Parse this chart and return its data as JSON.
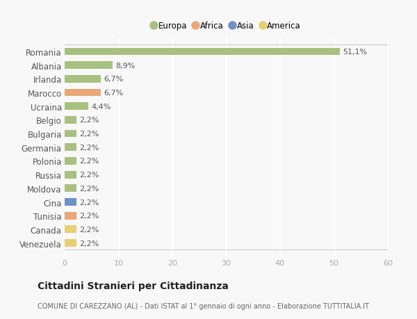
{
  "countries": [
    "Romania",
    "Albania",
    "Irlanda",
    "Marocco",
    "Ucraina",
    "Belgio",
    "Bulgaria",
    "Germania",
    "Polonia",
    "Russia",
    "Moldova",
    "Cina",
    "Tunisia",
    "Canada",
    "Venezuela"
  ],
  "values": [
    51.1,
    8.9,
    6.7,
    6.7,
    4.4,
    2.2,
    2.2,
    2.2,
    2.2,
    2.2,
    2.2,
    2.2,
    2.2,
    2.2,
    2.2
  ],
  "labels": [
    "51,1%",
    "8,9%",
    "6,7%",
    "6,7%",
    "4,4%",
    "2,2%",
    "2,2%",
    "2,2%",
    "2,2%",
    "2,2%",
    "2,2%",
    "2,2%",
    "2,2%",
    "2,2%",
    "2,2%"
  ],
  "colors": [
    "#a8c080",
    "#a8c080",
    "#a8c080",
    "#e8a878",
    "#a8c080",
    "#a8c080",
    "#a8c080",
    "#a8c080",
    "#a8c080",
    "#a8c080",
    "#a8c080",
    "#7090c8",
    "#e8a878",
    "#e8d070",
    "#e8d070"
  ],
  "legend_labels": [
    "Europa",
    "Africa",
    "Asia",
    "America"
  ],
  "legend_colors": [
    "#a8c080",
    "#e8a878",
    "#7090c8",
    "#e8d070"
  ],
  "xlim": [
    0,
    60
  ],
  "xticks": [
    0,
    10,
    20,
    30,
    40,
    50,
    60
  ],
  "title": "Cittadini Stranieri per Cittadinanza",
  "subtitle": "COMUNE DI CAREZZANO (AL) - Dati ISTAT al 1° gennaio di ogni anno - Elaborazione TUTTITALIA.IT",
  "bg_color": "#f8f8f8",
  "grid_color": "#ffffff",
  "bar_height": 0.55,
  "label_fontsize": 8,
  "ytick_fontsize": 8.5,
  "xtick_fontsize": 8,
  "title_fontsize": 10,
  "subtitle_fontsize": 7
}
